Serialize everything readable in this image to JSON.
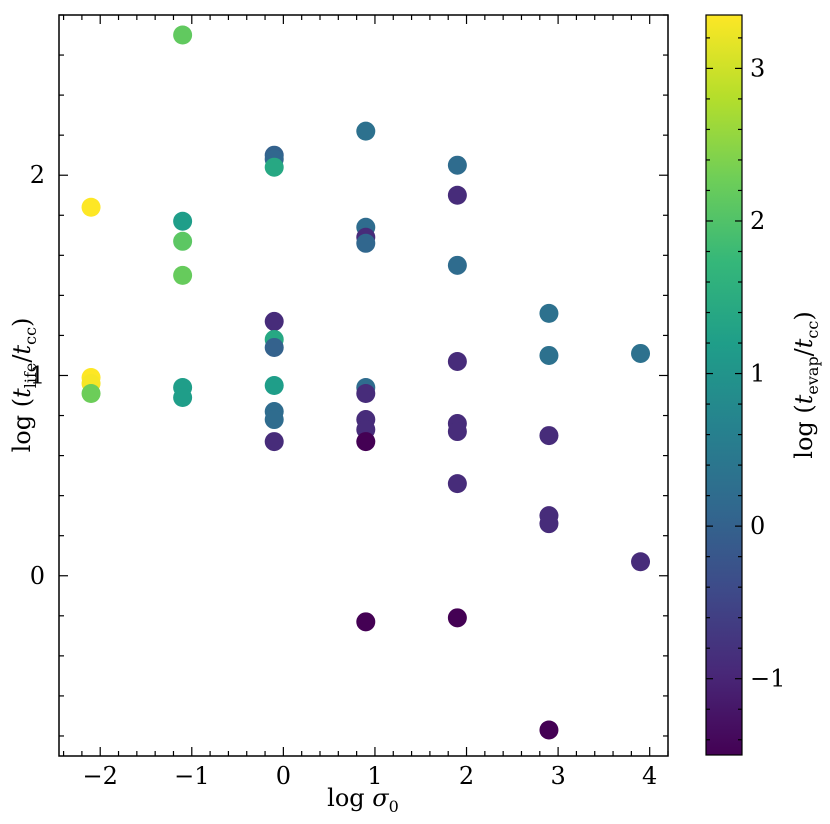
{
  "chart_data": {
    "type": "scatter",
    "xlabel": "log σ0",
    "ylabel": "log (tlife/tcc)",
    "xlim": [
      -2.45,
      4.2
    ],
    "ylim": [
      -0.9,
      2.8
    ],
    "xticks": [
      -2,
      -1,
      0,
      1,
      2,
      3,
      4
    ],
    "yticks": [
      0,
      1,
      2
    ],
    "xtick_labels": [
      "−2",
      "−1",
      "0",
      "1",
      "2",
      "3",
      "4"
    ],
    "ytick_labels": [
      "0",
      "1",
      "2"
    ],
    "grid": false,
    "colorbar": {
      "label": "log (tevap/tcc)",
      "colormap": "viridis",
      "range": [
        -1.5,
        3.35
      ],
      "ticks": [
        -1,
        0,
        1,
        2,
        3
      ],
      "tick_labels": [
        "−1",
        "0",
        "1",
        "2",
        "3"
      ]
    },
    "points": [
      {
        "x": -2.1,
        "y": 1.84,
        "c": 3.35
      },
      {
        "x": -2.1,
        "y": 0.99,
        "c": 3.35
      },
      {
        "x": -2.1,
        "y": 0.96,
        "c": 3.3
      },
      {
        "x": -2.1,
        "y": 0.91,
        "c": 2.25
      },
      {
        "x": -1.1,
        "y": 2.7,
        "c": 2.15
      },
      {
        "x": -1.1,
        "y": 1.77,
        "c": 1.2
      },
      {
        "x": -1.1,
        "y": 1.67,
        "c": 2.1
      },
      {
        "x": -1.1,
        "y": 1.5,
        "c": 2.2
      },
      {
        "x": -1.1,
        "y": 0.94,
        "c": 1.2
      },
      {
        "x": -1.1,
        "y": 0.89,
        "c": 1.2
      },
      {
        "x": -0.1,
        "y": 2.1,
        "c": 0.0
      },
      {
        "x": -0.1,
        "y": 2.08,
        "c": 0.1
      },
      {
        "x": -0.1,
        "y": 2.04,
        "c": 1.4
      },
      {
        "x": -0.1,
        "y": 1.27,
        "c": -0.9
      },
      {
        "x": -0.1,
        "y": 1.18,
        "c": 1.4
      },
      {
        "x": -0.1,
        "y": 1.14,
        "c": 0.0
      },
      {
        "x": -0.1,
        "y": 0.95,
        "c": 1.2
      },
      {
        "x": -0.1,
        "y": 0.82,
        "c": 0.2
      },
      {
        "x": -0.1,
        "y": 0.78,
        "c": 0.2
      },
      {
        "x": -0.1,
        "y": 0.67,
        "c": -0.9
      },
      {
        "x": 0.9,
        "y": 2.22,
        "c": 0.3
      },
      {
        "x": 0.9,
        "y": 1.74,
        "c": 0.2
      },
      {
        "x": 0.9,
        "y": 1.69,
        "c": -0.9
      },
      {
        "x": 0.9,
        "y": 1.66,
        "c": 0.1
      },
      {
        "x": 0.9,
        "y": 0.94,
        "c": 0.2
      },
      {
        "x": 0.9,
        "y": 0.91,
        "c": -0.9
      },
      {
        "x": 0.9,
        "y": 0.78,
        "c": -0.9
      },
      {
        "x": 0.9,
        "y": 0.73,
        "c": -0.9
      },
      {
        "x": 0.9,
        "y": 0.67,
        "c": -1.5
      },
      {
        "x": 0.9,
        "y": -0.23,
        "c": -1.5
      },
      {
        "x": 1.9,
        "y": 2.05,
        "c": 0.2
      },
      {
        "x": 1.9,
        "y": 1.9,
        "c": -0.9
      },
      {
        "x": 1.9,
        "y": 1.55,
        "c": 0.2
      },
      {
        "x": 1.9,
        "y": 1.07,
        "c": -0.9
      },
      {
        "x": 1.9,
        "y": 0.76,
        "c": -0.9
      },
      {
        "x": 1.9,
        "y": 0.72,
        "c": -0.9
      },
      {
        "x": 1.9,
        "y": 0.46,
        "c": -0.9
      },
      {
        "x": 1.9,
        "y": -0.21,
        "c": -1.5
      },
      {
        "x": 2.9,
        "y": 1.31,
        "c": 0.3
      },
      {
        "x": 2.9,
        "y": 1.1,
        "c": 0.3
      },
      {
        "x": 2.9,
        "y": 0.7,
        "c": -0.9
      },
      {
        "x": 2.9,
        "y": 0.3,
        "c": -0.9
      },
      {
        "x": 2.9,
        "y": 0.26,
        "c": -0.9
      },
      {
        "x": 2.9,
        "y": -0.77,
        "c": -1.5
      },
      {
        "x": 3.9,
        "y": 1.11,
        "c": 0.3
      },
      {
        "x": 3.9,
        "y": 0.07,
        "c": -0.9
      }
    ]
  }
}
